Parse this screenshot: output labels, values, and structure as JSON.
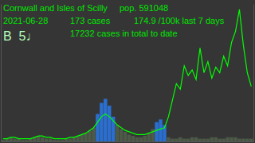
{
  "chart_data": {
    "type": "bar",
    "title": "Cornwall and Isles of Scilly",
    "annotations": [
      "pop. 591048",
      "2021-06-28",
      "173 cases",
      "174.9 /100k last 7 days",
      "B  5♩",
      "17232 cases in total to date"
    ],
    "categories": [
      null,
      null,
      null,
      null,
      null,
      null,
      null,
      null,
      null,
      null,
      null,
      null,
      null,
      null,
      null,
      null,
      null,
      null,
      null,
      null,
      null,
      null,
      null,
      null,
      null,
      null,
      null,
      null,
      null,
      null,
      null,
      null,
      null,
      null,
      null,
      null,
      null,
      null,
      null,
      null,
      null,
      null,
      null,
      null,
      null,
      null,
      null,
      null,
      null,
      null,
      null,
      null,
      null,
      null,
      null,
      null,
      null,
      null,
      null,
      null,
      null,
      null,
      null,
      null
    ],
    "series": [
      {
        "type": "bar",
        "values": [
          1,
          2,
          3,
          2,
          2,
          1,
          1,
          2,
          3,
          4,
          3,
          2,
          2,
          1,
          1,
          1,
          2,
          2,
          3,
          4,
          5,
          6,
          8,
          10,
          20,
          28,
          31,
          26,
          18,
          12,
          9,
          7,
          5,
          4,
          3,
          3,
          4,
          6,
          9,
          14,
          16,
          12,
          3,
          2,
          2,
          3,
          2,
          2,
          3,
          3,
          2,
          2,
          2,
          3,
          3,
          2,
          2,
          3,
          3,
          3,
          2,
          2,
          2,
          2
        ],
        "colors": [
          "#4e5a48",
          "#4e5a48",
          "#4e5a48",
          "#4e5a48",
          "#4e5a48",
          "#4e5a48",
          "#4e5a48",
          "#4e5a48",
          "#4e5a48",
          "#4e5a48",
          "#4e5a48",
          "#4e5a48",
          "#4e5a48",
          "#4e5a48",
          "#4e5a48",
          "#4e5a48",
          "#4e5a48",
          "#4e5a48",
          "#4e5a48",
          "#4e5a48",
          "#4e5a48",
          "#4e5a48",
          "#4e5a48",
          "#4e5a48",
          "#2a6fd0",
          "#2a6fd0",
          "#2a6fd0",
          "#2a6fd0",
          "#2a6fd0",
          "#4e5a48",
          "#4e5a48",
          "#4e5a48",
          "#4e5a48",
          "#4e5a48",
          "#4e5a48",
          "#4e5a48",
          "#4e5a48",
          "#4e5a48",
          "#4e5a48",
          "#2a6fd0",
          "#2a6fd0",
          "#2a6fd0",
          "#4e5a48",
          "#4e5a48",
          "#4e5a48",
          "#4e5a48",
          "#4e5a48",
          "#4e5a48",
          "#4e5a48",
          "#4e5a48",
          "#4e5a48",
          "#4e5a48",
          "#4e5a48",
          "#4e5a48",
          "#4e5a48",
          "#4e5a48",
          "#4e5a48",
          "#4e5a48",
          "#4e5a48",
          "#4e5a48",
          "#4e5a48",
          "#4e5a48",
          "#4e5a48",
          "#4e5a48"
        ]
      },
      {
        "type": "line",
        "axis": "y2",
        "color": "#00ff00",
        "values": [
          2,
          2,
          3,
          3,
          2,
          2,
          2,
          2,
          3,
          4,
          4,
          3,
          3,
          2,
          2,
          2,
          2,
          3,
          3,
          4,
          5,
          6,
          8,
          10,
          14,
          18,
          20,
          18,
          15,
          12,
          10,
          8,
          7,
          6,
          5,
          5,
          5,
          6,
          7,
          8,
          9,
          10,
          18,
          30,
          42,
          38,
          55,
          48,
          52,
          45,
          68,
          50,
          58,
          46,
          54,
          50,
          62,
          55,
          72,
          80,
          96,
          70,
          50,
          40
        ]
      }
    ],
    "ylim": [
      0,
      100
    ],
    "y2lim": [
      0,
      100
    ],
    "tick_labels": false
  }
}
